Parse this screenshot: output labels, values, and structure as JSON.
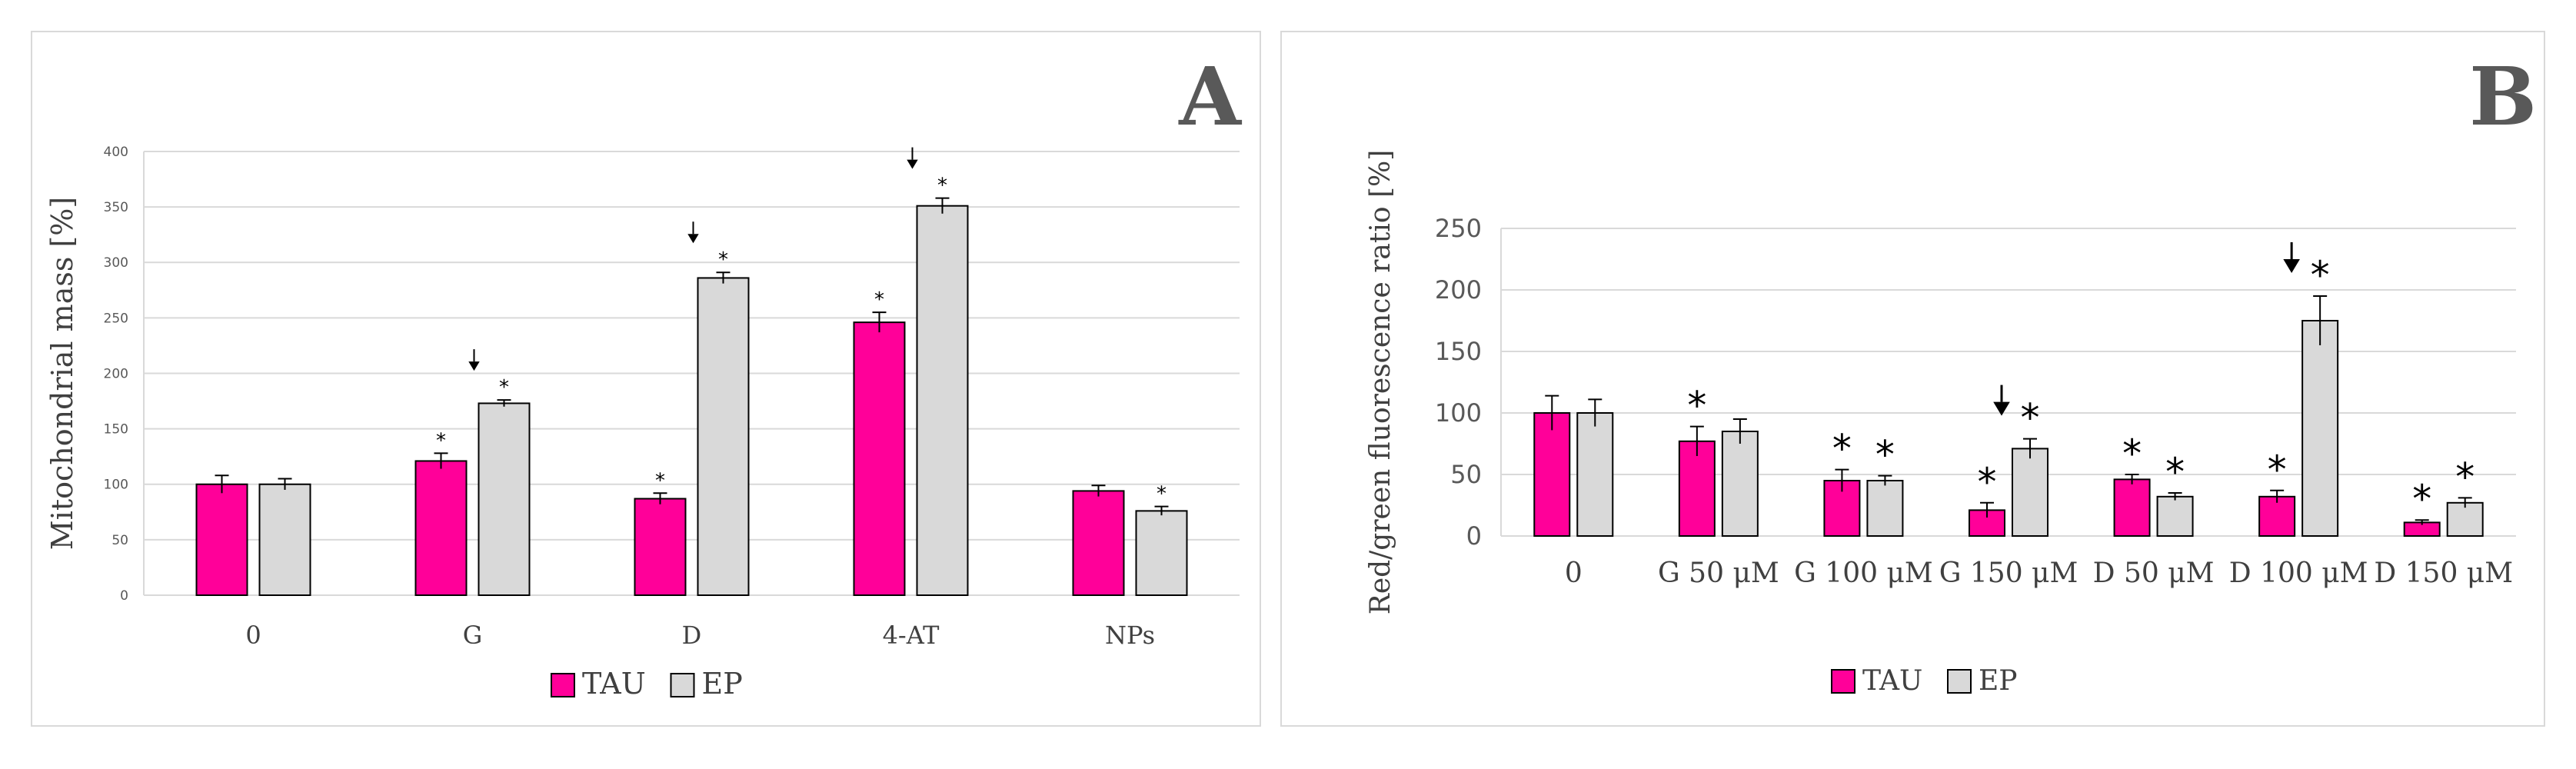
{
  "chart_data": [
    {
      "type": "bar",
      "panel_label": "A",
      "ylabel": "Mitochondrial mass [%]",
      "xlabel": "",
      "ylim": [
        0,
        400
      ],
      "yticks": [
        "0",
        "50",
        "100",
        "150",
        "200",
        "250",
        "300",
        "350",
        "400"
      ],
      "categories": [
        "0",
        "G",
        "D",
        "4-AT",
        "NPs"
      ],
      "series": [
        {
          "name": "TAU",
          "color": "#ff0099",
          "values": [
            100,
            121,
            87,
            246,
            94
          ],
          "errors": [
            8,
            7,
            5,
            9,
            5
          ],
          "stars": [
            "",
            "*",
            "*",
            "*",
            ""
          ]
        },
        {
          "name": "EP",
          "color": "#d9d9d9",
          "values": [
            100,
            173,
            286,
            351,
            76
          ],
          "errors": [
            5,
            3,
            5,
            7,
            4
          ],
          "stars": [
            "",
            "*",
            "*",
            "*",
            "*"
          ]
        }
      ],
      "arrows": [
        "",
        "↓",
        "↓",
        "↓",
        ""
      ],
      "legend": [
        "TAU",
        "EP"
      ],
      "grid": true
    },
    {
      "type": "bar",
      "panel_label": "B",
      "ylabel": "Red/green fluorescence ratio [%]",
      "xlabel": "",
      "ylim": [
        0,
        250
      ],
      "yticks": [
        "0",
        "50",
        "100",
        "150",
        "200",
        "250"
      ],
      "categories": [
        "0",
        "G 50 μM",
        "G 100 μM",
        "G 150 μM",
        "D 50 μM",
        "D 100 μM",
        "D 150 μM"
      ],
      "series": [
        {
          "name": "TAU",
          "color": "#ff0099",
          "values": [
            100,
            77,
            45,
            21,
            46,
            32,
            11
          ],
          "errors": [
            14,
            12,
            9,
            6,
            4,
            5,
            2
          ],
          "stars": [
            "",
            "*",
            "*",
            "*",
            "*",
            "*",
            "*"
          ]
        },
        {
          "name": "EP",
          "color": "#d9d9d9",
          "values": [
            100,
            85,
            45,
            71,
            32,
            175,
            27
          ],
          "errors": [
            11,
            10,
            4,
            8,
            3,
            20,
            4
          ],
          "stars": [
            "",
            "",
            "*",
            "*",
            "*",
            "*",
            "*"
          ]
        }
      ],
      "arrows": [
        "",
        "",
        "",
        "↓",
        "",
        "↓",
        ""
      ],
      "legend": [
        "TAU",
        "EP"
      ],
      "grid": true
    }
  ]
}
